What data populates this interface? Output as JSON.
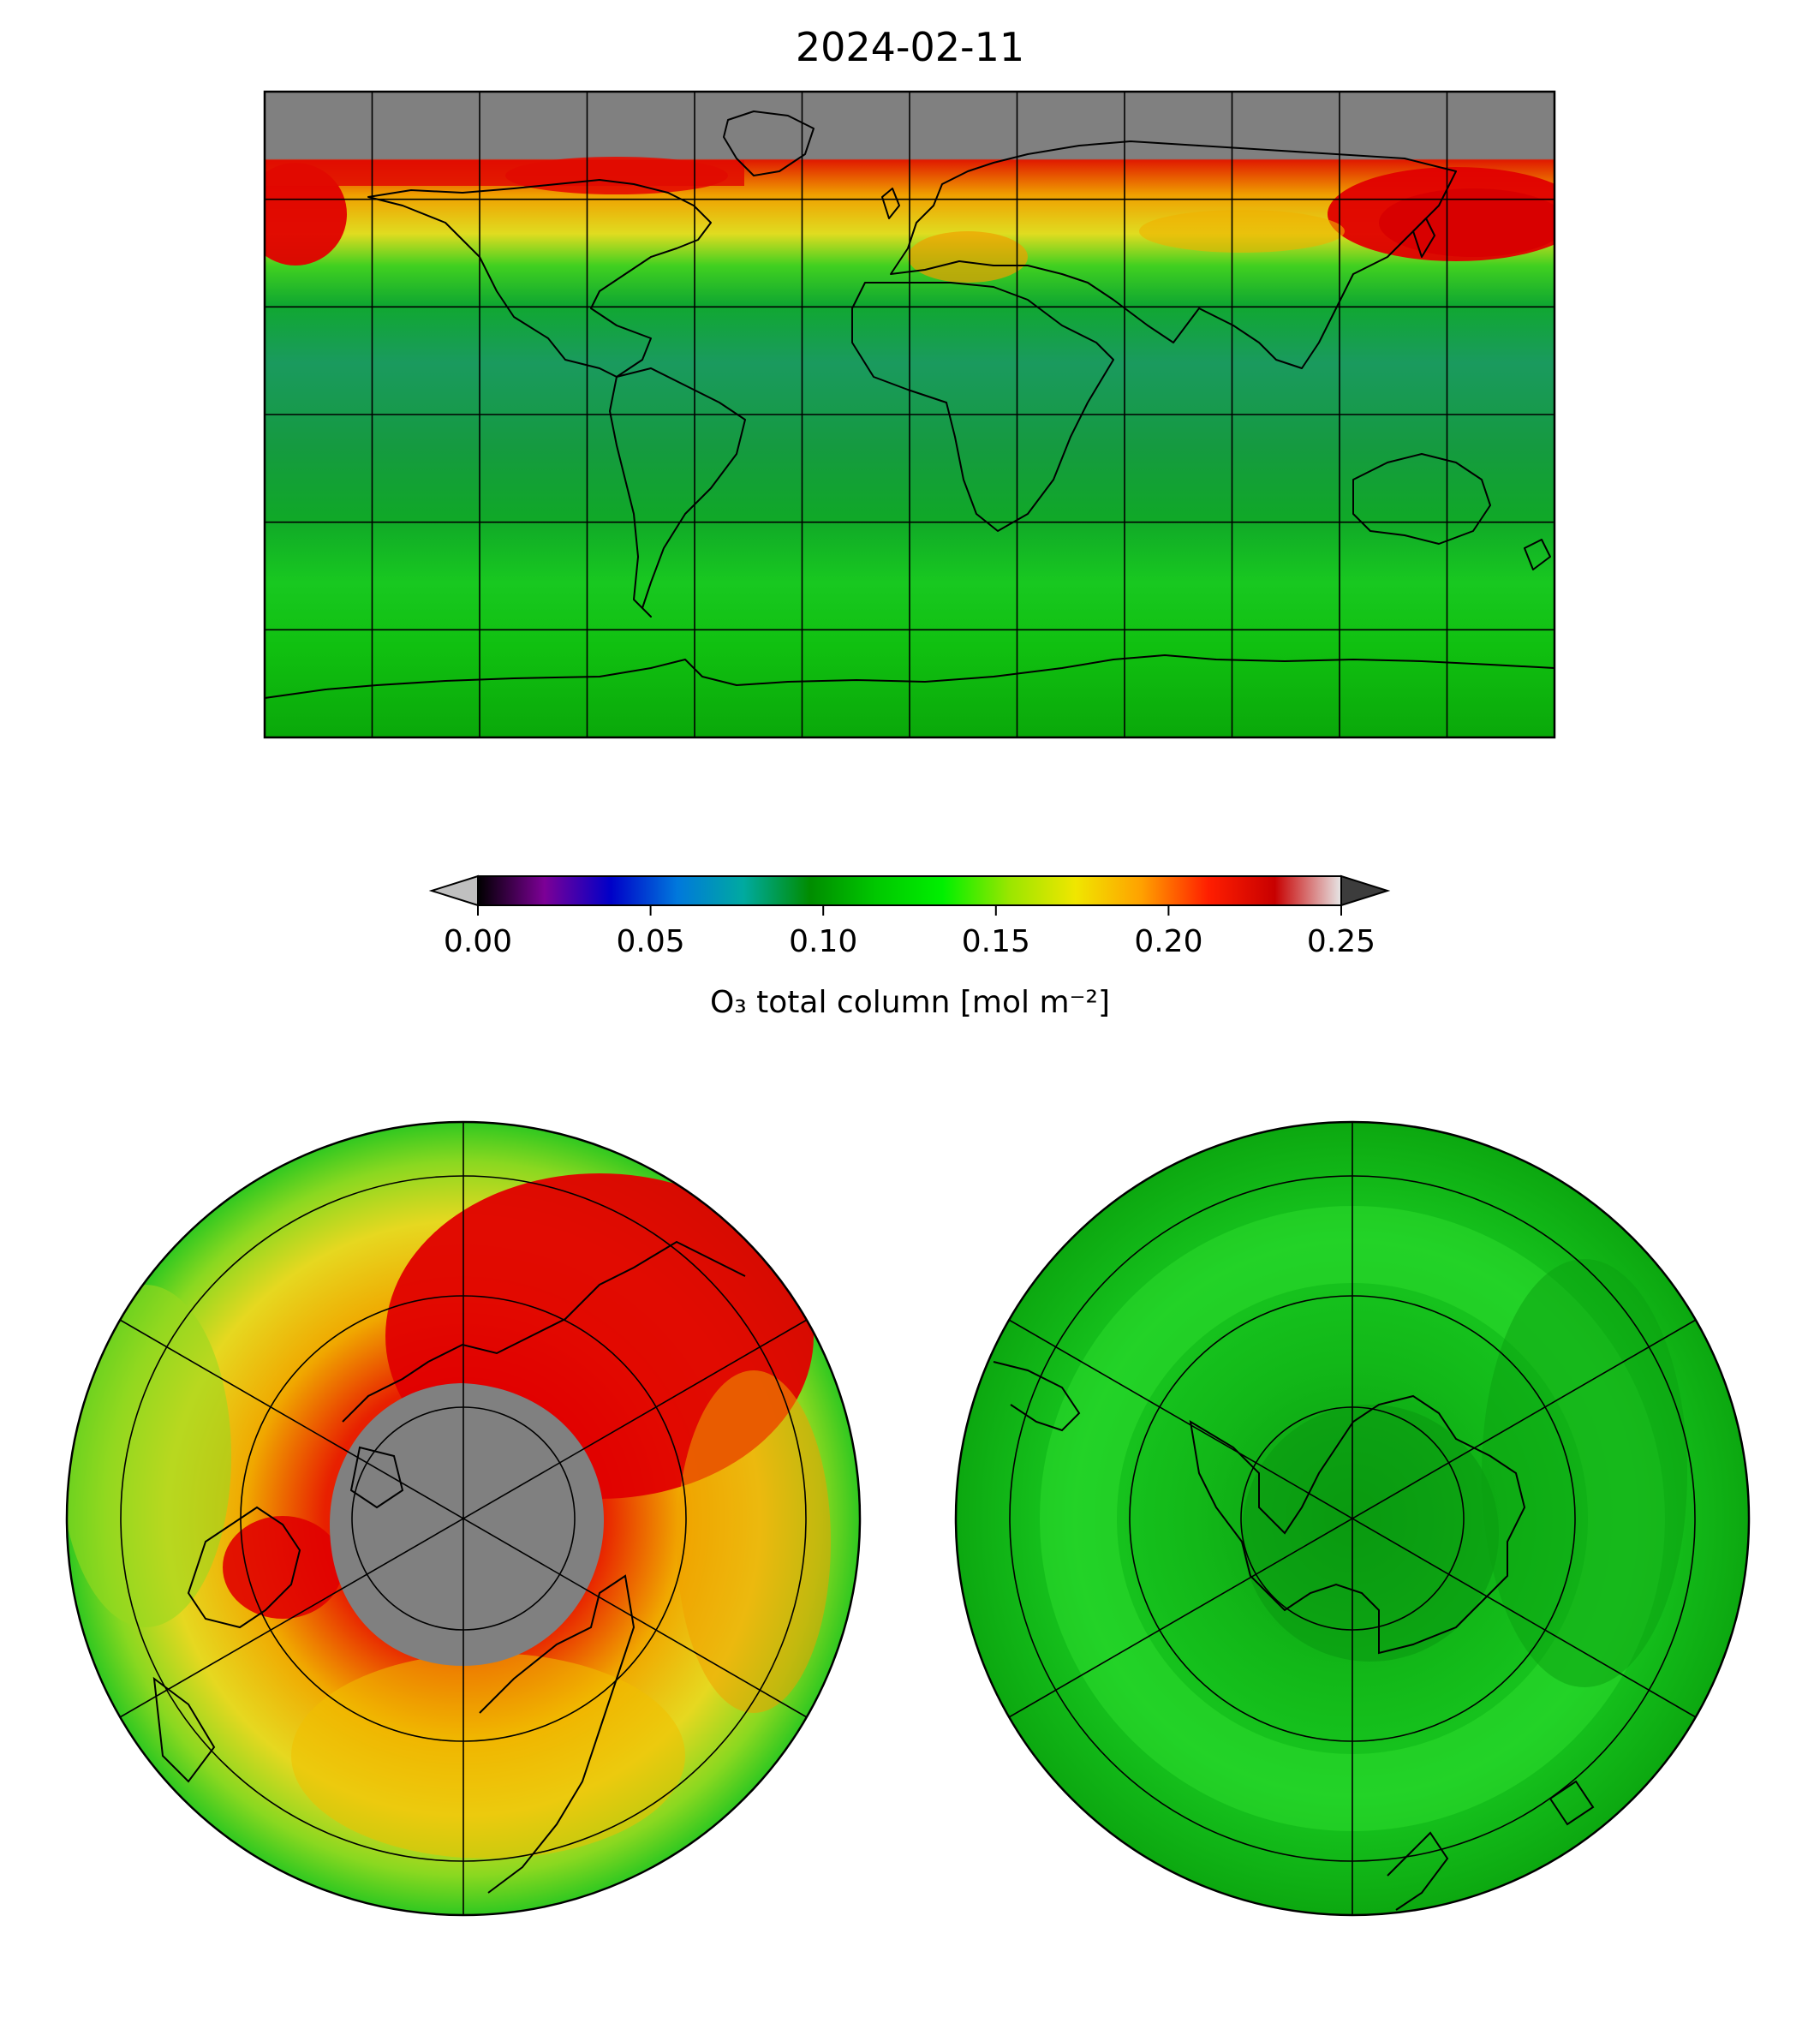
{
  "title": "2024-02-11",
  "colorbar": {
    "label": "O₃ total column [mol m⁻²]",
    "range": [
      0.0,
      0.25
    ],
    "extend": "both",
    "ticks": [
      "0.00",
      "0.05",
      "0.10",
      "0.15",
      "0.20",
      "0.25"
    ],
    "under_color": "#c0c0c0",
    "over_color": "#3c3c3c",
    "colormap_stops": [
      "#000000",
      "#7c0096",
      "#0000c8",
      "#0078dc",
      "#00aaa0",
      "#008c00",
      "#00c800",
      "#00f000",
      "#9ae600",
      "#f0e600",
      "#ffa000",
      "#ff1e00",
      "#c80000",
      "#e6e6e6"
    ]
  },
  "colors": {
    "missing_data": "#808080",
    "high_ozone": "#e00000",
    "mid_high": "#f2c200",
    "typical": "#10c010",
    "low_typical": "#0a9a2a",
    "tropical_band": "#1a9a5e"
  },
  "panels": {
    "global": {
      "projection": "plate-carree",
      "gridlines": true
    },
    "north_polar": {
      "projection": "north-polar-stereographic",
      "gridlines": true
    },
    "south_polar": {
      "projection": "south-polar-stereographic",
      "gridlines": true
    }
  }
}
